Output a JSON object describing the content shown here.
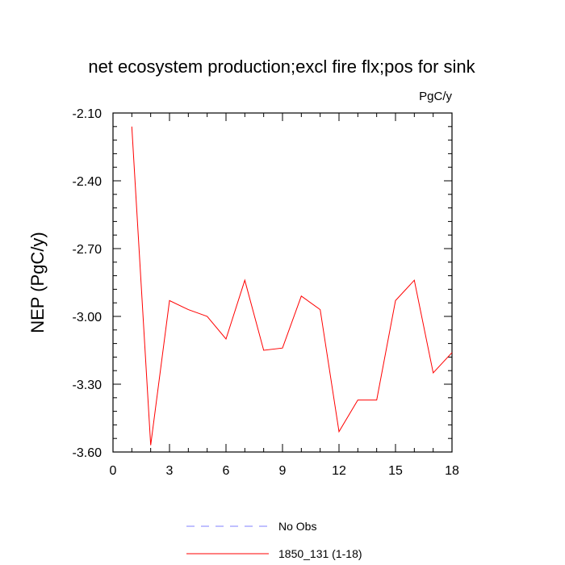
{
  "chart_data": {
    "type": "line",
    "title": "net ecosystem production;excl fire flx;pos for sink",
    "units": "PgC/y",
    "ylabel": "NEP  (PgC/y)",
    "xlabel": "",
    "xlim": [
      0,
      18
    ],
    "ylim": [
      -3.6,
      -2.1
    ],
    "x_ticks": [
      0,
      3,
      6,
      9,
      12,
      15,
      18
    ],
    "x_tick_labels": [
      "0",
      "3",
      "6",
      "9",
      "12",
      "15",
      "18"
    ],
    "y_ticks": [
      -2.1,
      -2.4,
      -2.7,
      -3.0,
      -3.3,
      -3.6
    ],
    "y_tick_labels": [
      "-2.10",
      "-2.40",
      "-2.70",
      "-3.00",
      "-3.30",
      "-3.60"
    ],
    "grid": false,
    "legend_position": "bottom",
    "series": [
      {
        "name": "No Obs",
        "color": "#8080ff",
        "dash": "dashed",
        "x": [],
        "y": []
      },
      {
        "name": "1850_131 (1-18)",
        "color": "#ff0000",
        "dash": "solid",
        "x": [
          1,
          2,
          3,
          4,
          5,
          6,
          7,
          8,
          9,
          10,
          11,
          12,
          13,
          14,
          15,
          16,
          17,
          18
        ],
        "y": [
          -2.16,
          -3.57,
          -2.93,
          -2.97,
          -3.0,
          -3.1,
          -2.84,
          -3.15,
          -3.14,
          -2.91,
          -2.97,
          -3.51,
          -3.37,
          -3.37,
          -2.93,
          -2.84,
          -3.25,
          -3.16
        ]
      }
    ]
  }
}
